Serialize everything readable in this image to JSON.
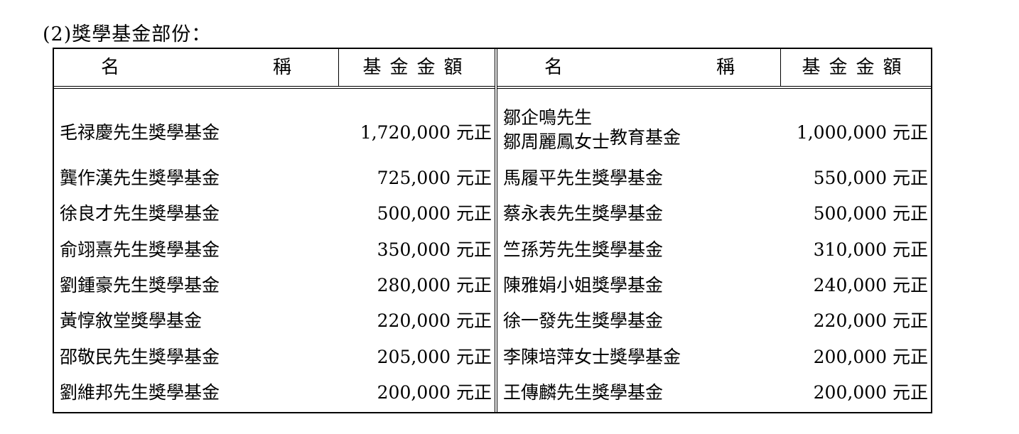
{
  "title": "(2)獎學基金部份：",
  "header": {
    "name_left": "名",
    "name_right": "稱",
    "amount": "基金金額"
  },
  "left_rows": [
    {
      "name": "毛禄慶先生獎學基金",
      "amount": "1,720,000 元正"
    },
    {
      "name": "龔作漢先生獎學基金",
      "amount": "725,000 元正"
    },
    {
      "name": "徐良才先生獎學基金",
      "amount": "500,000 元正"
    },
    {
      "name": "俞翊熹先生獎學基金",
      "amount": "350,000 元正"
    },
    {
      "name": "劉鍾豪先生獎學基金",
      "amount": "280,000 元正"
    },
    {
      "name": "黃惇敘堂獎學基金",
      "amount": "220,000 元正"
    },
    {
      "name": "邵敬民先生獎學基金",
      "amount": "205,000 元正"
    },
    {
      "name": "劉維邦先生獎學基金",
      "amount": "200,000 元正"
    }
  ],
  "right_first": {
    "line1": "鄒企鳴先生",
    "line2": "鄒周麗鳳女士",
    "suffix": "教育基金",
    "amount": "1,000,000 元正"
  },
  "right_rows": [
    {
      "name": "馬履平先生獎學基金",
      "amount": "550,000 元正"
    },
    {
      "name": "蔡永表先生獎學基金",
      "amount": "500,000 元正"
    },
    {
      "name": "竺孫芳先生獎學基金",
      "amount": "310,000 元正"
    },
    {
      "name": "陳雅娟小姐獎學基金",
      "amount": "240,000 元正"
    },
    {
      "name": "徐一發先生獎學基金",
      "amount": "220,000 元正"
    },
    {
      "name": "李陳培萍女士獎學基金",
      "amount": "200,000 元正"
    },
    {
      "name": "王傳麟先生獎學基金",
      "amount": "200,000 元正"
    }
  ]
}
